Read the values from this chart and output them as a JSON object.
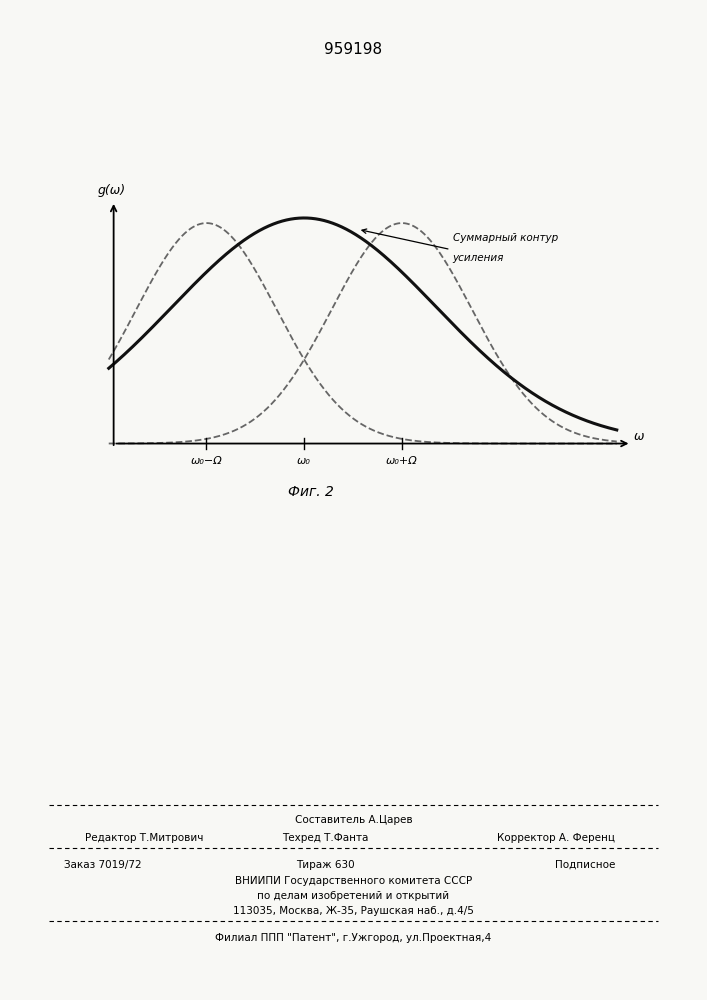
{
  "title": "959198",
  "fig_label": "Фиг. 2",
  "ylabel": "g(ω)",
  "xlabel": "ω",
  "annotation_line1": "Суммарный контур",
  "annotation_line2": "усиления",
  "xtick_labels": [
    "ω₀−Ω",
    "ω₀",
    "ω₀+Ω"
  ],
  "omega0": 0.0,
  "Omega": 1.0,
  "sigma_individual": 0.72,
  "sigma_sum": 1.35,
  "background_color": "#f8f8f5",
  "curve_color": "#111111",
  "dashed_color": "#666666",
  "title_fontsize": 11,
  "label_fontsize": 9,
  "tick_fontsize": 8,
  "fig_label_fontsize": 10,
  "footer_fontsize": 7.5
}
